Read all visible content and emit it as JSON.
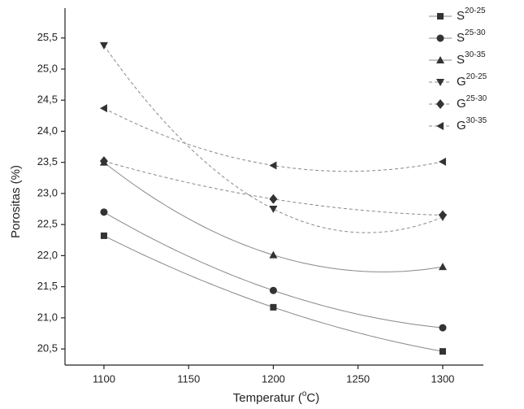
{
  "chart_data": {
    "type": "scatter",
    "x_label": "Temperatur (°C)",
    "y_label": "Porositas (%)",
    "xlim": [
      1077,
      1324
    ],
    "xticks": [
      1100,
      1150,
      1200,
      1250,
      1300
    ],
    "ylim": [
      20.24,
      25.98
    ],
    "yticks": [
      {
        "value": 20.5,
        "label": "20,5"
      },
      {
        "value": 21,
        "label": "21,0"
      },
      {
        "value": 21.5,
        "label": "21,5"
      },
      {
        "value": 22,
        "label": "22,0"
      },
      {
        "value": 22.5,
        "label": "22,5"
      },
      {
        "value": 23,
        "label": "23,0"
      },
      {
        "value": 23.5,
        "label": "23,5"
      },
      {
        "value": 24,
        "label": "24,0"
      },
      {
        "value": 24.5,
        "label": "24,5"
      },
      {
        "value": 25,
        "label": "25,0"
      },
      {
        "value": 25.5,
        "label": "25,5"
      }
    ],
    "x": [
      1100,
      1200,
      1300
    ],
    "legend": "upper right",
    "series": [
      {
        "name": "S20-25",
        "marker": "square",
        "line": "solid",
        "color": "#333333",
        "values": [
          22.32,
          21.17,
          20.46
        ]
      },
      {
        "name": "S25-30",
        "marker": "circle",
        "line": "solid",
        "color": "#333333",
        "values": [
          22.7,
          21.44,
          20.84
        ]
      },
      {
        "name": "S30-35",
        "marker": "triangle-up",
        "line": "solid",
        "color": "#333333",
        "values": [
          23.5,
          22.01,
          21.82
        ]
      },
      {
        "name": "G20-25",
        "marker": "triangle-down",
        "line": "dashed",
        "color": "#333333",
        "values": [
          25.38,
          22.75,
          22.62
        ]
      },
      {
        "name": "G25-30",
        "marker": "diamond",
        "line": "dashed",
        "color": "#333333",
        "values": [
          23.52,
          22.91,
          22.65
        ]
      },
      {
        "name": "G30-35",
        "marker": "triangle-left",
        "line": "dashed",
        "color": "#333333",
        "values": [
          24.37,
          23.45,
          23.51
        ]
      }
    ]
  }
}
